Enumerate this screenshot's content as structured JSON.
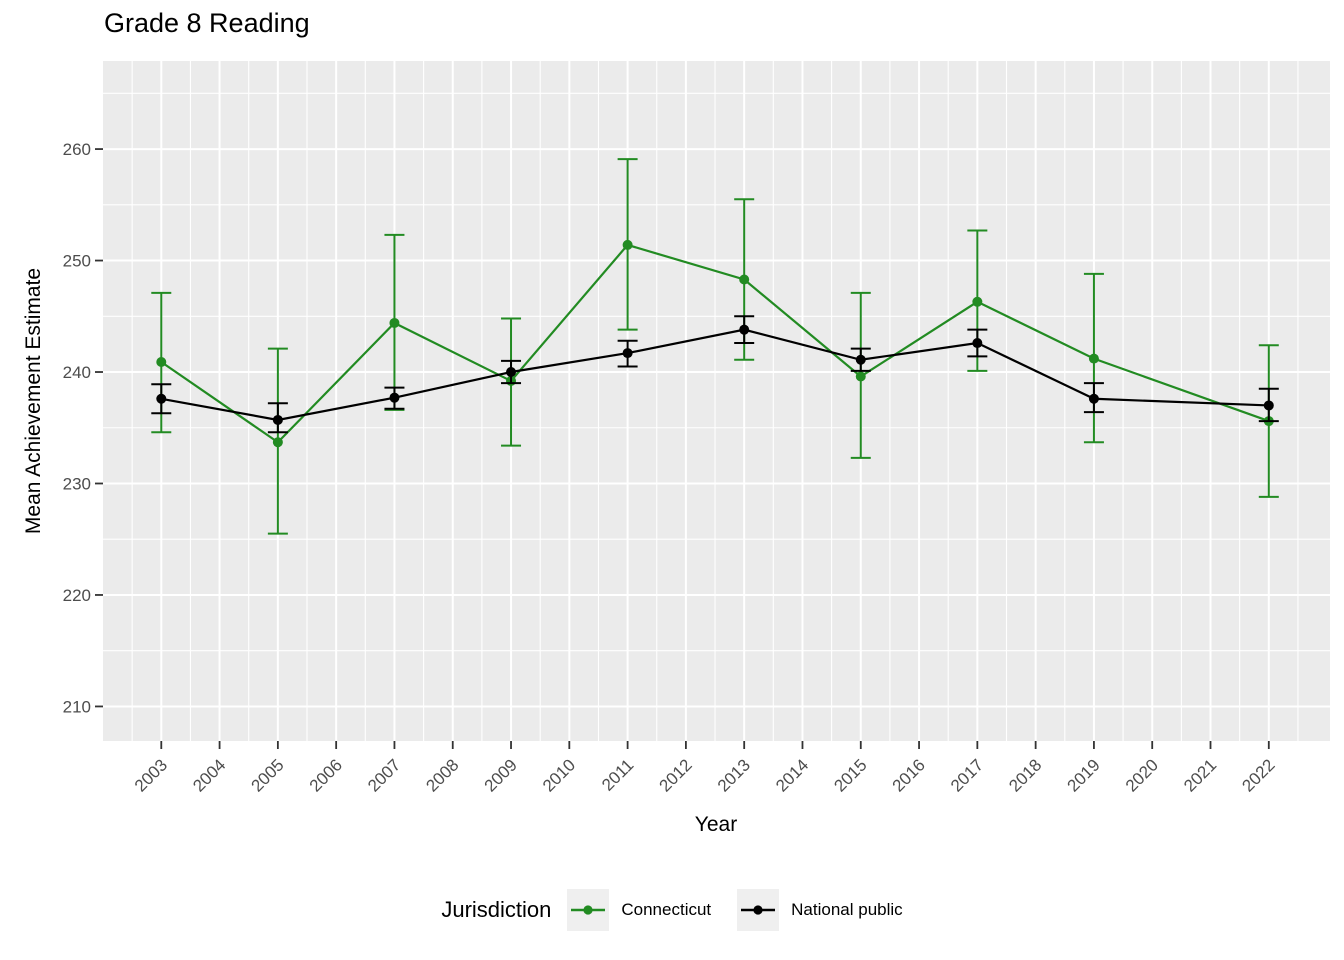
{
  "page": {
    "title": "Grade 8 Reading"
  },
  "chart_data": {
    "type": "line",
    "title": "Grade 8 Reading",
    "xlabel": "Year",
    "ylabel": "Mean Achievement Estimate",
    "legend_title": "Jurisdiction",
    "legend_position": "bottom",
    "grid": true,
    "panel_bg": "#EBEBEB",
    "grid_color": "#FFFFFF",
    "tick_label_color": "#4D4D4D",
    "axis_tick_color": "#333333",
    "xlim": [
      2002.0,
      2023.05
    ],
    "ylim": [
      206.9,
      267.9
    ],
    "x_ticks": [
      2003,
      2004,
      2005,
      2006,
      2007,
      2008,
      2009,
      2010,
      2011,
      2012,
      2013,
      2014,
      2015,
      2016,
      2017,
      2018,
      2019,
      2020,
      2021,
      2022
    ],
    "y_ticks": [
      210,
      220,
      230,
      240,
      250,
      260
    ],
    "y_minor_ticks": [
      215,
      225,
      235,
      245,
      255,
      265
    ],
    "series": [
      {
        "name": "Connecticut",
        "color": "#228B22",
        "points": [
          {
            "x": 2003,
            "y": 240.9,
            "ymin": 234.6,
            "ymax": 247.1
          },
          {
            "x": 2005,
            "y": 233.7,
            "ymin": 225.5,
            "ymax": 242.1
          },
          {
            "x": 2007,
            "y": 244.4,
            "ymin": 236.6,
            "ymax": 252.3
          },
          {
            "x": 2009,
            "y": 239.2,
            "ymin": 233.4,
            "ymax": 244.8
          },
          {
            "x": 2011,
            "y": 251.4,
            "ymin": 243.8,
            "ymax": 259.1
          },
          {
            "x": 2013,
            "y": 248.3,
            "ymin": 241.1,
            "ymax": 255.5
          },
          {
            "x": 2015,
            "y": 239.6,
            "ymin": 232.3,
            "ymax": 247.1
          },
          {
            "x": 2017,
            "y": 246.3,
            "ymin": 240.1,
            "ymax": 252.7
          },
          {
            "x": 2019,
            "y": 241.2,
            "ymin": 233.7,
            "ymax": 248.8
          },
          {
            "x": 2022,
            "y": 235.6,
            "ymin": 228.8,
            "ymax": 242.4
          }
        ]
      },
      {
        "name": "National public",
        "color": "#000000",
        "points": [
          {
            "x": 2003,
            "y": 237.6,
            "ymin": 236.3,
            "ymax": 238.9
          },
          {
            "x": 2005,
            "y": 235.7,
            "ymin": 234.6,
            "ymax": 237.2
          },
          {
            "x": 2007,
            "y": 237.7,
            "ymin": 236.7,
            "ymax": 238.6
          },
          {
            "x": 2009,
            "y": 240.0,
            "ymin": 239.0,
            "ymax": 241.0
          },
          {
            "x": 2011,
            "y": 241.7,
            "ymin": 240.5,
            "ymax": 242.8
          },
          {
            "x": 2013,
            "y": 243.8,
            "ymin": 242.6,
            "ymax": 245.0
          },
          {
            "x": 2015,
            "y": 241.1,
            "ymin": 240.1,
            "ymax": 242.1
          },
          {
            "x": 2017,
            "y": 242.6,
            "ymin": 241.4,
            "ymax": 243.8
          },
          {
            "x": 2019,
            "y": 237.6,
            "ymin": 236.4,
            "ymax": 239.0
          },
          {
            "x": 2022,
            "y": 237.0,
            "ymin": 235.6,
            "ymax": 238.5
          }
        ]
      }
    ]
  }
}
